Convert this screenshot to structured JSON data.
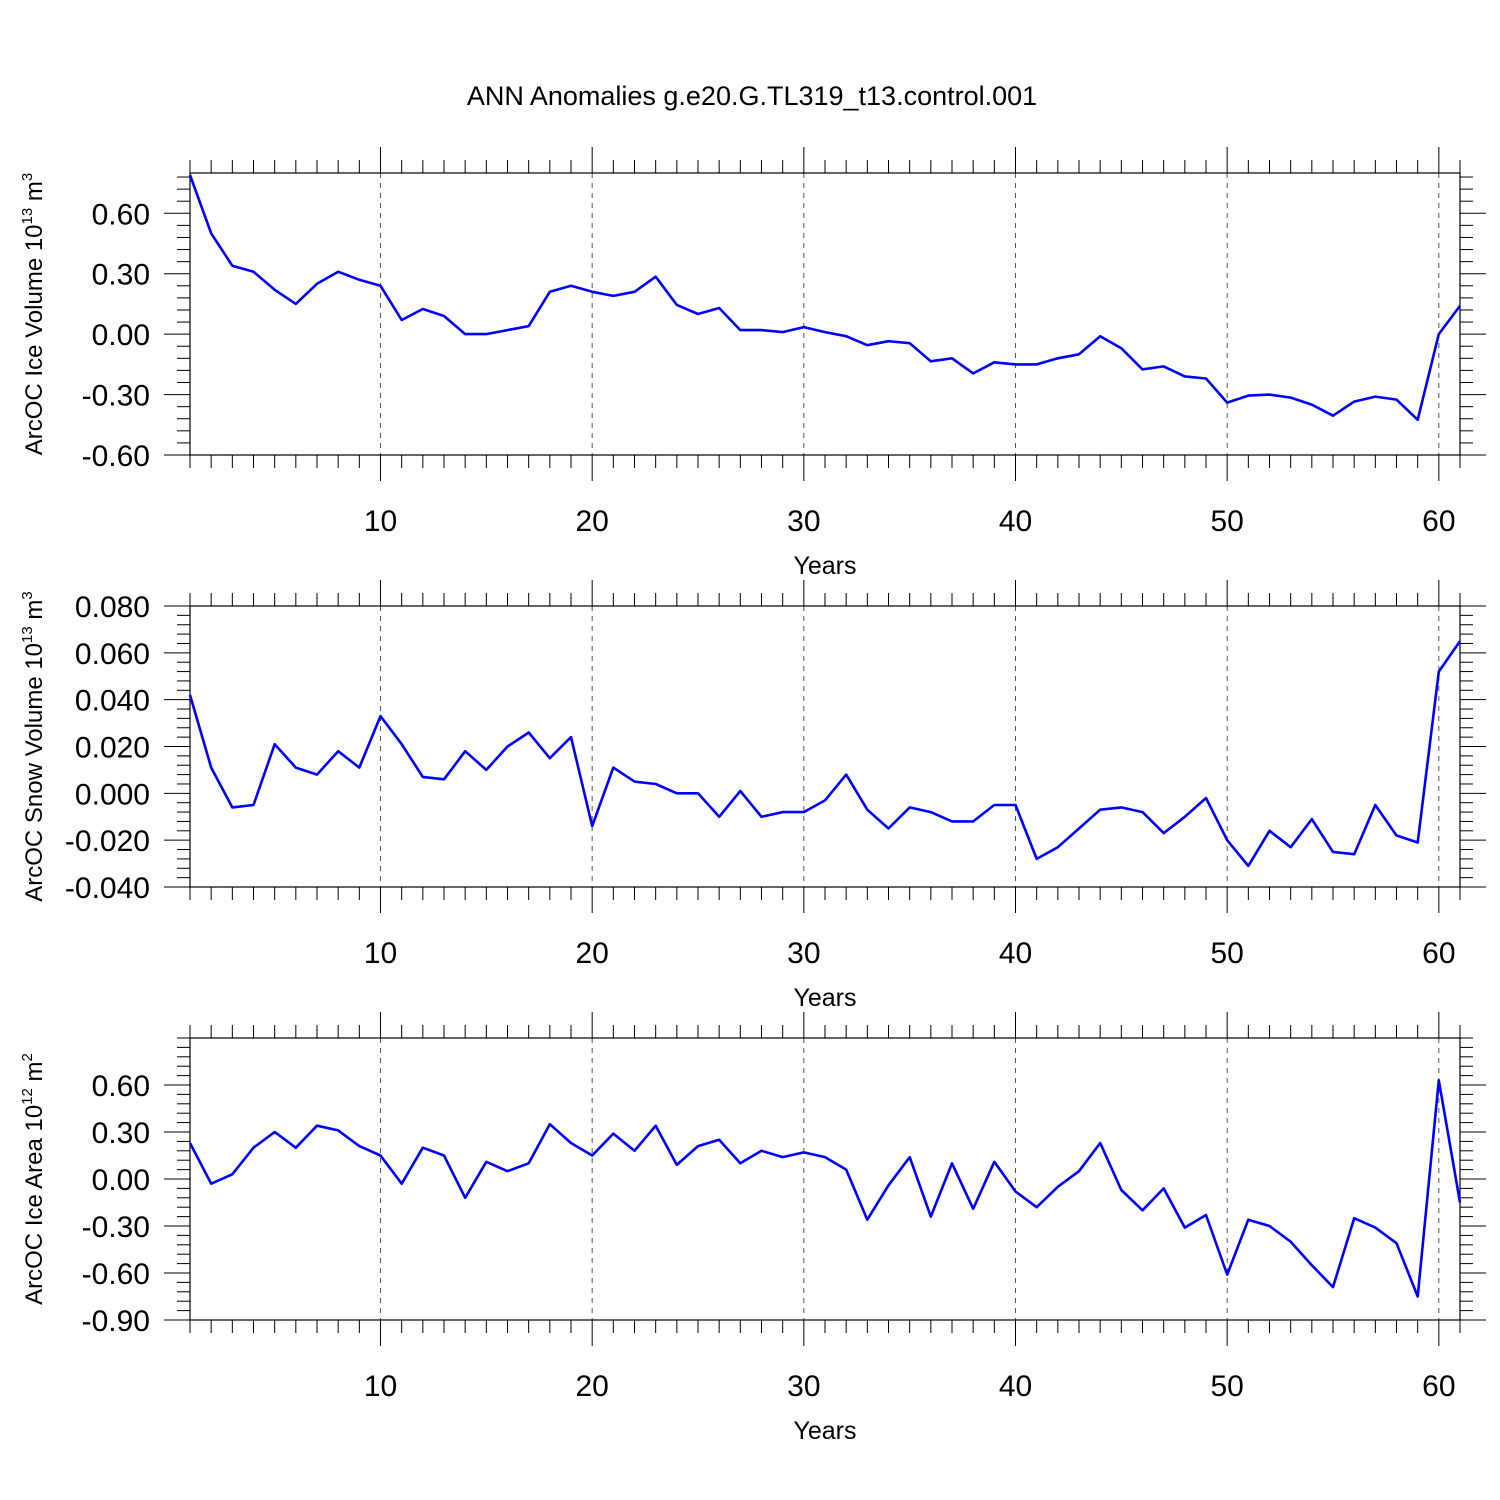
{
  "title": "ANN Anomalies g.e20.G.TL319_t13.control.001",
  "chart_data": [
    {
      "type": "line",
      "ylabel": "ArcOC Ice Volume 10",
      "ylabel_exp": "13",
      "ylabel_unit": " m",
      "ylabel_unit_exp": "3",
      "xlabel": "Years",
      "xlim": [
        1,
        61
      ],
      "ylim": [
        -0.6,
        0.8
      ],
      "yticks": [
        -0.6,
        -0.3,
        0.0,
        0.3,
        0.6
      ],
      "ytick_labels": [
        "-0.60",
        "-0.30",
        "0.00",
        "0.30",
        "0.60"
      ],
      "xticks": [
        10,
        20,
        30,
        40,
        50,
        60
      ],
      "xtick_labels": [
        "10",
        "20",
        "30",
        "40",
        "50",
        "60"
      ],
      "grid": "vertical dashed",
      "color": "#0000ff",
      "x": [
        1,
        2,
        3,
        4,
        5,
        6,
        7,
        8,
        9,
        10,
        11,
        12,
        13,
        14,
        15,
        16,
        17,
        18,
        19,
        20,
        21,
        22,
        23,
        24,
        25,
        26,
        27,
        28,
        29,
        30,
        31,
        32,
        33,
        34,
        35,
        36,
        37,
        38,
        39,
        40,
        41,
        42,
        43,
        44,
        45,
        46,
        47,
        48,
        49,
        50,
        51,
        52,
        53,
        54,
        55,
        56,
        57,
        58,
        59,
        60,
        61
      ],
      "y": [
        0.79,
        0.5,
        0.34,
        0.31,
        0.22,
        0.15,
        0.25,
        0.31,
        0.27,
        0.24,
        0.07,
        0.125,
        0.09,
        0.0,
        0.0,
        0.02,
        0.04,
        0.21,
        0.24,
        0.21,
        0.19,
        0.21,
        0.285,
        0.145,
        0.1,
        0.13,
        0.02,
        0.02,
        0.01,
        0.035,
        0.01,
        -0.01,
        -0.055,
        -0.035,
        -0.045,
        -0.135,
        -0.12,
        -0.195,
        -0.14,
        -0.15,
        -0.15,
        -0.12,
        -0.1,
        -0.01,
        -0.07,
        -0.175,
        -0.16,
        -0.21,
        -0.22,
        -0.34,
        -0.305,
        -0.3,
        -0.315,
        -0.35,
        -0.405,
        -0.335,
        -0.31,
        -0.325,
        -0.425,
        0.0,
        0.14
      ]
    },
    {
      "type": "line",
      "ylabel": "ArcOC Snow Volume 10",
      "ylabel_exp": "13",
      "ylabel_unit": " m",
      "ylabel_unit_exp": "3",
      "xlabel": "Years",
      "xlim": [
        1,
        61
      ],
      "ylim": [
        -0.04,
        0.08
      ],
      "yticks": [
        -0.04,
        -0.02,
        0.0,
        0.02,
        0.04,
        0.06,
        0.08
      ],
      "ytick_labels": [
        "-0.040",
        "-0.020",
        "0.000",
        "0.020",
        "0.040",
        "0.060",
        "0.080"
      ],
      "xticks": [
        10,
        20,
        30,
        40,
        50,
        60
      ],
      "xtick_labels": [
        "10",
        "20",
        "30",
        "40",
        "50",
        "60"
      ],
      "grid": "vertical dashed",
      "color": "#0000ff",
      "x": [
        1,
        2,
        3,
        4,
        5,
        6,
        7,
        8,
        9,
        10,
        11,
        12,
        13,
        14,
        15,
        16,
        17,
        18,
        19,
        20,
        21,
        22,
        23,
        24,
        25,
        26,
        27,
        28,
        29,
        30,
        31,
        32,
        33,
        34,
        35,
        36,
        37,
        38,
        39,
        40,
        41,
        42,
        43,
        44,
        45,
        46,
        47,
        48,
        49,
        50,
        51,
        52,
        53,
        54,
        55,
        56,
        57,
        58,
        59,
        60,
        61
      ],
      "y": [
        0.042,
        0.011,
        -0.006,
        -0.005,
        0.021,
        0.011,
        0.008,
        0.018,
        0.011,
        0.033,
        0.021,
        0.007,
        0.006,
        0.018,
        0.01,
        0.02,
        0.026,
        0.015,
        0.024,
        -0.014,
        0.011,
        0.005,
        0.004,
        0.0,
        0.0,
        -0.01,
        0.001,
        -0.01,
        -0.008,
        -0.008,
        -0.003,
        0.008,
        -0.007,
        -0.015,
        -0.006,
        -0.008,
        -0.012,
        -0.012,
        -0.005,
        -0.005,
        -0.028,
        -0.023,
        -0.015,
        -0.007,
        -0.006,
        -0.008,
        -0.017,
        -0.01,
        -0.002,
        -0.02,
        -0.031,
        -0.016,
        -0.023,
        -0.011,
        -0.025,
        -0.026,
        -0.005,
        -0.018,
        -0.021,
        0.052,
        0.065
      ]
    },
    {
      "type": "line",
      "ylabel": "ArcOC Ice Area 10",
      "ylabel_exp": "12",
      "ylabel_unit": " m",
      "ylabel_unit_exp": "2",
      "xlabel": "Years",
      "xlim": [
        1,
        61
      ],
      "ylim": [
        -0.9,
        0.9
      ],
      "yticks": [
        -0.9,
        -0.6,
        -0.3,
        0.0,
        0.3,
        0.6
      ],
      "ytick_labels": [
        "-0.90",
        "-0.60",
        "-0.30",
        "0.00",
        "0.30",
        "0.60"
      ],
      "xticks": [
        10,
        20,
        30,
        40,
        50,
        60
      ],
      "xtick_labels": [
        "10",
        "20",
        "30",
        "40",
        "50",
        "60"
      ],
      "grid": "vertical dashed",
      "color": "#0000ff",
      "x": [
        1,
        2,
        3,
        4,
        5,
        6,
        7,
        8,
        9,
        10,
        11,
        12,
        13,
        14,
        15,
        16,
        17,
        18,
        19,
        20,
        21,
        22,
        23,
        24,
        25,
        26,
        27,
        28,
        29,
        30,
        31,
        32,
        33,
        34,
        35,
        36,
        37,
        38,
        39,
        40,
        41,
        42,
        43,
        44,
        45,
        46,
        47,
        48,
        49,
        50,
        51,
        52,
        53,
        54,
        55,
        56,
        57,
        58,
        59,
        60,
        61
      ],
      "y": [
        0.23,
        -0.03,
        0.03,
        0.2,
        0.3,
        0.2,
        0.34,
        0.31,
        0.21,
        0.15,
        -0.03,
        0.2,
        0.15,
        -0.12,
        0.11,
        0.05,
        0.1,
        0.35,
        0.23,
        0.15,
        0.29,
        0.18,
        0.34,
        0.09,
        0.21,
        0.25,
        0.1,
        0.18,
        0.14,
        0.17,
        0.14,
        0.06,
        -0.26,
        -0.04,
        0.14,
        -0.24,
        0.1,
        -0.19,
        0.11,
        -0.08,
        -0.18,
        -0.05,
        0.05,
        0.23,
        -0.07,
        -0.2,
        -0.06,
        -0.31,
        -0.23,
        -0.61,
        -0.26,
        -0.3,
        -0.4,
        -0.55,
        -0.69,
        -0.25,
        -0.31,
        -0.41,
        -0.75,
        0.63,
        -0.15
      ]
    }
  ]
}
